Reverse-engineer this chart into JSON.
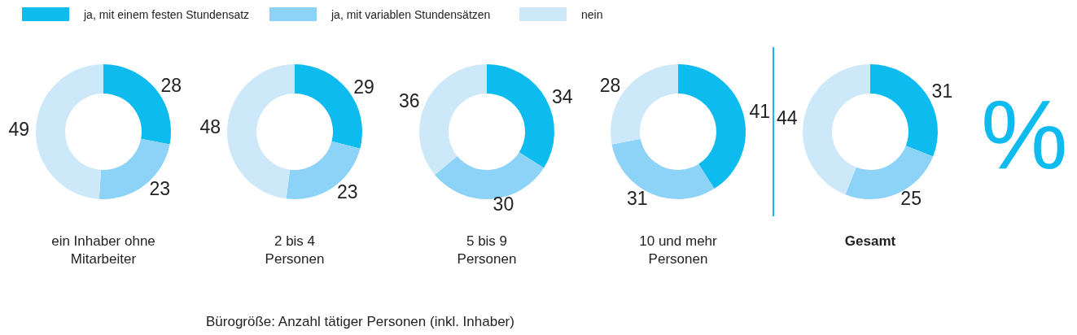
{
  "chart_data": [
    {
      "type": "donut",
      "title": "ein Inhaber ohne\nMitarbeiter",
      "categories": [
        "ja, mit einem festen Stundensatz",
        "ja, mit variablen Stundensätzen",
        "nein"
      ],
      "values": [
        28,
        23,
        49
      ],
      "colors": [
        "#0dbbef",
        "#8dd3f7",
        "#cde9f9"
      ],
      "data_labels": true,
      "legend": "top right",
      "annotations": [
        "Bürogröße: Anzahl tätiger Personen (inkl. Inhaber)"
      ]
    },
    {
      "type": "donut",
      "title": "2 bis 4\nPersonen",
      "values": [
        29,
        23,
        48
      ],
      "colors": [
        "#0dbbef",
        "#8dd3f7",
        "#cde9f9"
      ],
      "data_labels": true
    },
    {
      "type": "donut",
      "title": "5 bis 9\nPersonen",
      "values": [
        34,
        30,
        36
      ],
      "colors": [
        "#0dbbef",
        "#8dd3f7",
        "#cde9f9"
      ],
      "data_labels": true
    },
    {
      "type": "donut",
      "title": "10 und mehr\nPersonen",
      "values": [
        41,
        31,
        28
      ],
      "colors": [
        "#0dbbef",
        "#8dd3f7",
        "#cde9f9"
      ],
      "data_labels": true
    },
    {
      "type": "donut",
      "title": "Gesamt",
      "values": [
        31,
        25,
        44
      ],
      "colors": [
        "#0dbbef",
        "#8dd3f7",
        "#cde9f9"
      ],
      "data_labels": true,
      "annotations": [
        "%"
      ]
    }
  ]
}
